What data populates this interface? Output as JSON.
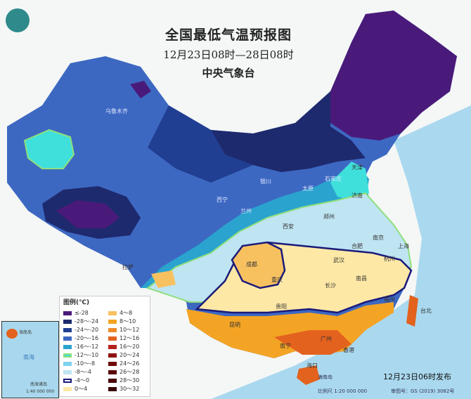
{
  "header": {
    "title": "全国最低气温预报图",
    "period": "12月23日08时—28日08时",
    "agency": "中央气象台"
  },
  "legend": {
    "title": "图例(℃)",
    "items": [
      {
        "label": "≤-28",
        "color": "#4a1a7a"
      },
      {
        "label": "-28～-24",
        "color": "#1e2a6e"
      },
      {
        "label": "-24～-20",
        "color": "#213f92"
      },
      {
        "label": "-20～-16",
        "color": "#3d68c2"
      },
      {
        "label": "-16～-12",
        "color": "#2aa3cf"
      },
      {
        "label": "-12～-10",
        "color": "#3fe0dc",
        "border": "#8ee07a"
      },
      {
        "label": "-10～-8",
        "color": "#7fd3ee"
      },
      {
        "label": "-8～-4",
        "color": "#bfe4f2"
      },
      {
        "label": "-4～0",
        "color": "#ffffff",
        "border": "#1a1a7a"
      },
      {
        "label": "0～4",
        "color": "#fde8a6"
      },
      {
        "label": "4～8",
        "color": "#f8c160"
      },
      {
        "label": "8～10",
        "color": "#f4a424"
      },
      {
        "label": "10～12",
        "color": "#ee8a2a"
      },
      {
        "label": "12～16",
        "color": "#e3621e"
      },
      {
        "label": "16～20",
        "color": "#b4201a"
      },
      {
        "label": "20～24",
        "color": "#8e1010"
      },
      {
        "label": "24～26",
        "color": "#6e0a0a"
      },
      {
        "label": "26～28",
        "color": "#5a0808"
      },
      {
        "label": "28～30",
        "color": "#4a0606"
      },
      {
        "label": "30～32",
        "color": "#3a0404"
      }
    ]
  },
  "cities": {
    "urumqi": "乌鲁木齐",
    "yinchuan": "银川",
    "taiyuan": "太原",
    "shijiazhuang": "石家庄",
    "tianjin": "天津",
    "jinan": "济南",
    "xining": "西宁",
    "lanzhou": "兰州",
    "xian": "西安",
    "zhengzhou": "郑州",
    "hefei": "合肥",
    "nanjing": "南京",
    "shanghai": "上海",
    "hangzhou": "杭州",
    "wuhan": "武汉",
    "chengdu": "成都",
    "chongqing": "重庆",
    "changsha": "长沙",
    "nanchang": "南昌",
    "guiyang": "贵阳",
    "fuzhou": "福州",
    "taibei": "台北",
    "kunming": "昆明",
    "nanning": "南宁",
    "guangzhou": "广州",
    "hongkong": "香港",
    "haikou": "海口",
    "lhasa": "拉萨"
  },
  "inset": {
    "sea": "南海",
    "island": "海南岛",
    "islands": "南海诸岛",
    "scale": "1:40 000 000"
  },
  "footer": {
    "scale": "比例尺 1:20 000 000",
    "map_no": "审图号：GS (2019) 3082号",
    "island": "海南岛",
    "issued": "12月23日06时发布"
  }
}
